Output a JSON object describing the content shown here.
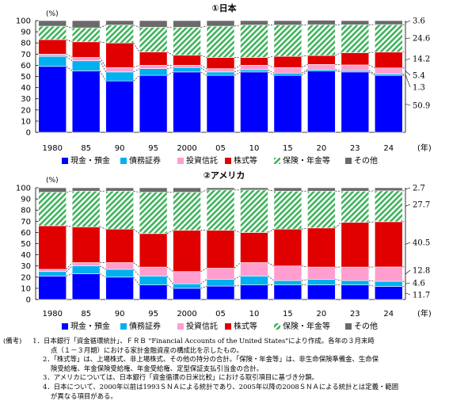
{
  "chart_data": [
    {
      "type": "bar",
      "stacked": true,
      "title": "①日本",
      "y_unit": "(%)",
      "x_unit": "(年)",
      "ylim": [
        0,
        100
      ],
      "yticks": [
        0,
        10,
        20,
        30,
        40,
        50,
        60,
        70,
        80,
        90,
        100
      ],
      "grid": false,
      "categories": [
        "1980",
        "85",
        "90",
        "95",
        "2000",
        "05",
        "10",
        "15",
        "20",
        "23",
        "24"
      ],
      "series": [
        {
          "name": "現金・預金",
          "color": "#0000ff",
          "values": [
            59,
            55,
            46,
            51,
            54,
            51,
            54,
            51,
            55,
            54,
            50.9
          ]
        },
        {
          "name": "債務証券",
          "color": "#00b0f0",
          "values": [
            9,
            9,
            8,
            6,
            4,
            3,
            2,
            2,
            1.3,
            1.3,
            1.3
          ]
        },
        {
          "name": "投資信託",
          "color": "#ff9ecf",
          "values": [
            2,
            3,
            4,
            3,
            2,
            3,
            4,
            5,
            4.5,
            5,
            5.4
          ]
        },
        {
          "name": "株式等",
          "color": "#e00000",
          "values": [
            13,
            14,
            22,
            12,
            9,
            10,
            7,
            10,
            8,
            11,
            14.2
          ]
        },
        {
          "name": "保険・年金等",
          "color": "#4dbf6a",
          "values": [
            12,
            12.5,
            16,
            22,
            25,
            28,
            29,
            28,
            27.5,
            25,
            24.6
          ]
        },
        {
          "name": "その他",
          "color": "#6a6a6a",
          "values": [
            5,
            6.5,
            4,
            6,
            6,
            5,
            4,
            4,
            4,
            3.7,
            3.6
          ]
        }
      ],
      "right_labels": [
        "3.6",
        "24.6",
        "14.2",
        "5.4",
        "1.3",
        "50.9"
      ],
      "legend_position": "bottom"
    },
    {
      "type": "bar",
      "stacked": true,
      "title": "②アメリカ",
      "y_unit": "(%)",
      "x_unit": "(年)",
      "ylim": [
        0,
        100
      ],
      "yticks": [
        0,
        10,
        20,
        30,
        40,
        50,
        60,
        70,
        80,
        90,
        100
      ],
      "grid": false,
      "categories": [
        "1980",
        "85",
        "90",
        "95",
        "2000",
        "05",
        "10",
        "15",
        "20",
        "23",
        "24"
      ],
      "series": [
        {
          "name": "現金・預金",
          "color": "#0000ff",
          "values": [
            21,
            23,
            20,
            13,
            10,
            12,
            13,
            13,
            13,
            13,
            11.7
          ]
        },
        {
          "name": "債務証券",
          "color": "#00b0f0",
          "values": [
            4,
            7,
            7,
            8,
            4,
            6,
            8,
            4,
            5,
            4,
            4.6
          ]
        },
        {
          "name": "投資信託",
          "color": "#ff9ecf",
          "values": [
            2,
            3,
            6,
            8,
            11,
            10,
            12,
            13,
            11,
            12,
            12.8
          ]
        },
        {
          "name": "株式等",
          "color": "#e00000",
          "values": [
            39,
            32,
            30,
            30,
            37,
            34,
            27,
            33,
            35,
            40,
            40.5
          ]
        },
        {
          "name": "保険・年金等",
          "color": "#4dbf6a",
          "values": [
            30,
            32,
            34,
            37,
            34,
            36,
            38,
            34,
            33,
            28,
            27.7
          ]
        },
        {
          "name": "その他",
          "color": "#6a6a6a",
          "values": [
            4,
            3,
            3,
            4,
            4,
            2,
            2,
            3,
            3,
            3,
            2.7
          ]
        }
      ],
      "right_labels": [
        "2.7",
        "27.7",
        "40.5",
        "12.8",
        "4.6",
        "11.7"
      ],
      "legend_position": "bottom"
    }
  ],
  "notes": {
    "lead": "(備考)",
    "items": [
      [
        "1．日本銀行「資金循環統計」、ＦＲＢ \"Financial Accounts of the United States\"により作成。各年の３月末時",
        "点（１－３月期）における家計金融資産の構成比を示したもの。"
      ],
      [
        "2．「株式等」は、上場株式、非上場株式、その他の持分の合計。「保険・年金等」は、非生命保険準備金、生命保",
        "険受給権、年金保険受給権、年金受給権、定型保証支払引当金の合計。"
      ],
      [
        "3．アメリカについては、日本銀行「資金循環の日米比較」における取引項目に基づき分類。"
      ],
      [
        "4．日本について、2000年以前は1993ＳＮＡによる統計であり、2005年以降の2008ＳＮＡによる統計とは定義・範囲",
        "が異なる項目がある。"
      ]
    ]
  }
}
